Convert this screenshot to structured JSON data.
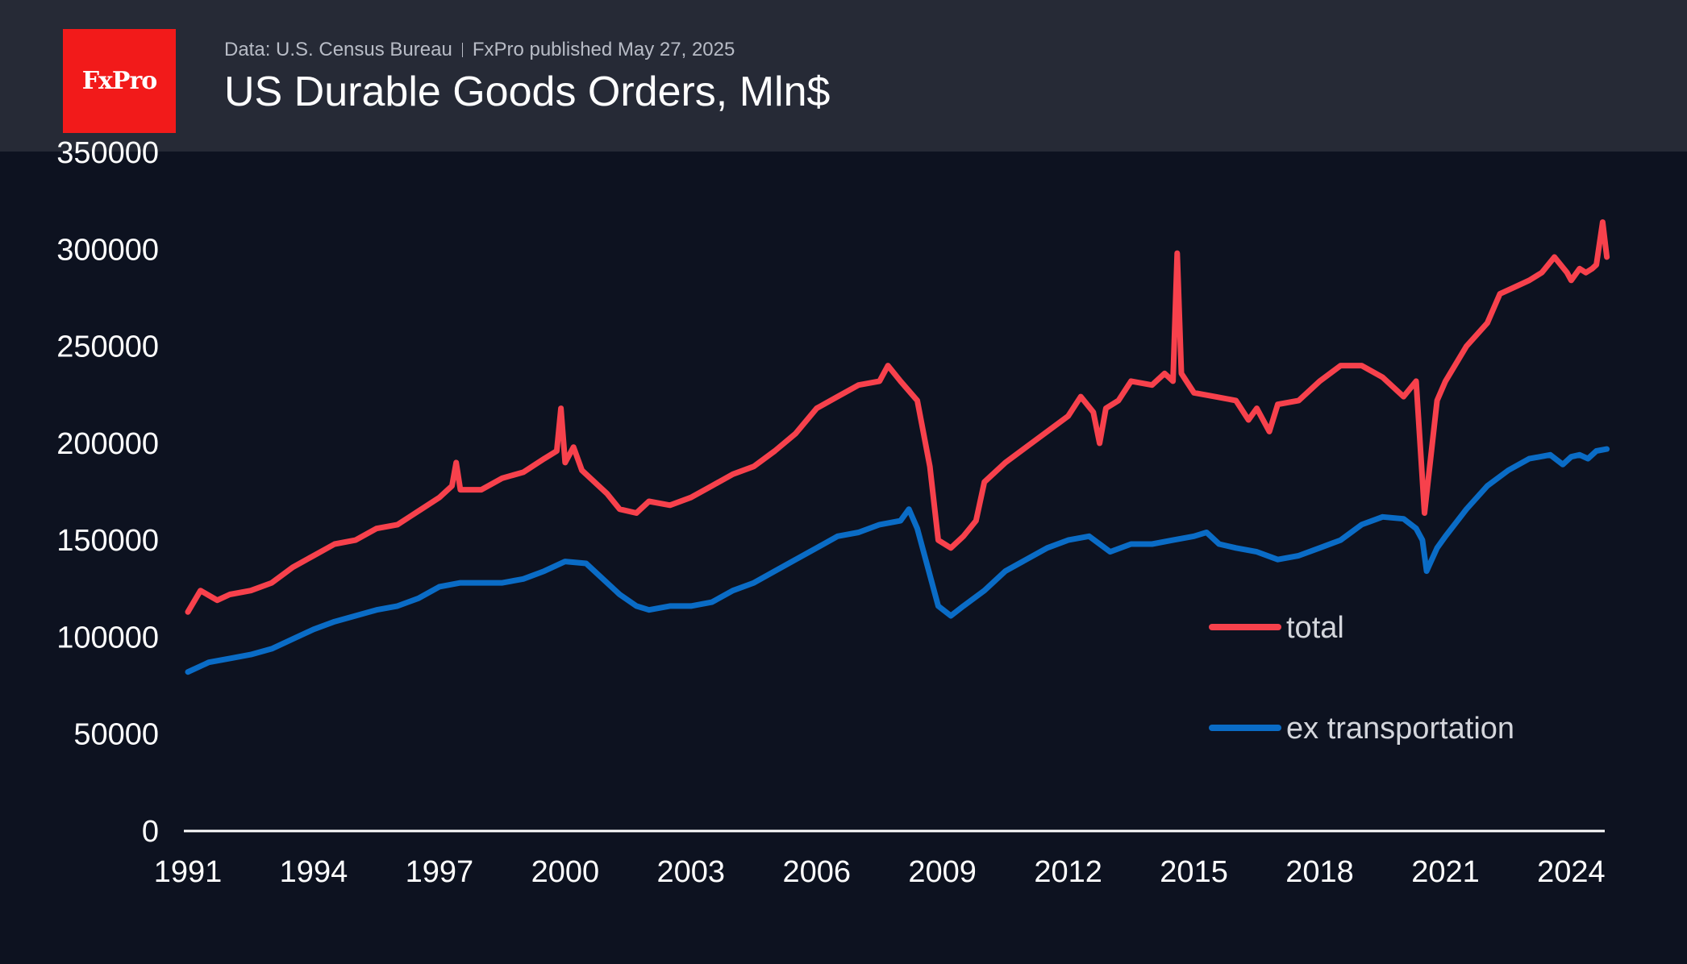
{
  "header": {
    "logo_text": "FxPro",
    "source_text": "Data: U.S. Census Bureau",
    "published_text": "FxPro published May 27, 2025",
    "title": "US Durable Goods Orders, Mln$"
  },
  "colors": {
    "total": "#f7414c",
    "ex_transportation": "#0a6cc6",
    "background": "#0d1220",
    "header": "#262a36",
    "logo": "#f21a1a"
  },
  "chart_data": {
    "type": "line",
    "title": "US Durable Goods Orders, Mln$",
    "xlabel": "",
    "ylabel": "",
    "xlim": [
      1991.0,
      2024.2
    ],
    "ylim": [
      0,
      350000
    ],
    "x_ticks": [
      "1991",
      "1994",
      "1997",
      "2000",
      "2003",
      "2006",
      "2009",
      "2012",
      "2015",
      "2018",
      "2021",
      "2024"
    ],
    "y_ticks": [
      "0",
      "50000",
      "100000",
      "150000",
      "200000",
      "250000",
      "300000",
      "350000"
    ],
    "legend_position": "right",
    "series": [
      {
        "name": "total",
        "points": [
          [
            1991.0,
            113000
          ],
          [
            1991.3,
            124000
          ],
          [
            1991.7,
            119000
          ],
          [
            1992.0,
            122000
          ],
          [
            1992.5,
            124000
          ],
          [
            1993.0,
            128000
          ],
          [
            1993.5,
            136000
          ],
          [
            1994.0,
            142000
          ],
          [
            1994.5,
            148000
          ],
          [
            1995.0,
            150000
          ],
          [
            1995.5,
            156000
          ],
          [
            1996.0,
            158000
          ],
          [
            1996.5,
            165000
          ],
          [
            1997.0,
            172000
          ],
          [
            1997.3,
            178000
          ],
          [
            1997.4,
            190000
          ],
          [
            1997.5,
            176000
          ],
          [
            1998.0,
            176000
          ],
          [
            1998.5,
            182000
          ],
          [
            1999.0,
            185000
          ],
          [
            1999.5,
            192000
          ],
          [
            1999.8,
            196000
          ],
          [
            1999.9,
            218000
          ],
          [
            2000.0,
            190000
          ],
          [
            2000.2,
            198000
          ],
          [
            2000.4,
            186000
          ],
          [
            2000.8,
            178000
          ],
          [
            2001.0,
            174000
          ],
          [
            2001.3,
            166000
          ],
          [
            2001.7,
            164000
          ],
          [
            2002.0,
            170000
          ],
          [
            2002.5,
            168000
          ],
          [
            2003.0,
            172000
          ],
          [
            2003.5,
            178000
          ],
          [
            2004.0,
            184000
          ],
          [
            2004.5,
            188000
          ],
          [
            2005.0,
            196000
          ],
          [
            2005.5,
            205000
          ],
          [
            2006.0,
            218000
          ],
          [
            2006.5,
            224000
          ],
          [
            2007.0,
            230000
          ],
          [
            2007.5,
            232000
          ],
          [
            2007.7,
            240000
          ],
          [
            2008.0,
            232000
          ],
          [
            2008.4,
            222000
          ],
          [
            2008.7,
            188000
          ],
          [
            2008.9,
            150000
          ],
          [
            2009.2,
            146000
          ],
          [
            2009.5,
            152000
          ],
          [
            2009.8,
            160000
          ],
          [
            2010.0,
            180000
          ],
          [
            2010.5,
            190000
          ],
          [
            2011.0,
            198000
          ],
          [
            2011.5,
            206000
          ],
          [
            2012.0,
            214000
          ],
          [
            2012.3,
            224000
          ],
          [
            2012.6,
            216000
          ],
          [
            2012.75,
            200000
          ],
          [
            2012.9,
            218000
          ],
          [
            2013.2,
            222000
          ],
          [
            2013.5,
            232000
          ],
          [
            2014.0,
            230000
          ],
          [
            2014.3,
            236000
          ],
          [
            2014.5,
            232000
          ],
          [
            2014.6,
            298000
          ],
          [
            2014.7,
            236000
          ],
          [
            2015.0,
            226000
          ],
          [
            2015.5,
            224000
          ],
          [
            2016.0,
            222000
          ],
          [
            2016.3,
            212000
          ],
          [
            2016.5,
            218000
          ],
          [
            2016.8,
            206000
          ],
          [
            2017.0,
            220000
          ],
          [
            2017.5,
            222000
          ],
          [
            2018.0,
            232000
          ],
          [
            2018.5,
            240000
          ],
          [
            2019.0,
            240000
          ],
          [
            2019.5,
            234000
          ],
          [
            2020.0,
            224000
          ],
          [
            2020.3,
            232000
          ],
          [
            2020.5,
            164000
          ],
          [
            2020.8,
            222000
          ],
          [
            2021.0,
            232000
          ],
          [
            2021.5,
            250000
          ],
          [
            2022.0,
            262000
          ],
          [
            2022.3,
            277000
          ],
          [
            2022.6,
            280000
          ],
          [
            2023.0,
            284000
          ],
          [
            2023.3,
            288000
          ],
          [
            2023.6,
            296000
          ],
          [
            2023.9,
            288000
          ],
          [
            2024.0,
            284000
          ],
          [
            2024.2,
            290000
          ],
          [
            2024.35,
            288000
          ],
          [
            2024.5,
            290000
          ],
          [
            2024.6,
            292000
          ],
          [
            2024.75,
            314000
          ],
          [
            2024.85,
            296000
          ]
        ]
      },
      {
        "name": "ex transportation",
        "points": [
          [
            1991.0,
            82000
          ],
          [
            1991.5,
            87000
          ],
          [
            1992.0,
            89000
          ],
          [
            1992.5,
            91000
          ],
          [
            1993.0,
            94000
          ],
          [
            1993.5,
            99000
          ],
          [
            1994.0,
            104000
          ],
          [
            1994.5,
            108000
          ],
          [
            1995.0,
            111000
          ],
          [
            1995.5,
            114000
          ],
          [
            1996.0,
            116000
          ],
          [
            1996.5,
            120000
          ],
          [
            1997.0,
            126000
          ],
          [
            1997.5,
            128000
          ],
          [
            1998.0,
            128000
          ],
          [
            1998.5,
            128000
          ],
          [
            1999.0,
            130000
          ],
          [
            1999.5,
            134000
          ],
          [
            2000.0,
            139000
          ],
          [
            2000.5,
            138000
          ],
          [
            2001.0,
            128000
          ],
          [
            2001.3,
            122000
          ],
          [
            2001.7,
            116000
          ],
          [
            2002.0,
            114000
          ],
          [
            2002.5,
            116000
          ],
          [
            2003.0,
            116000
          ],
          [
            2003.5,
            118000
          ],
          [
            2004.0,
            124000
          ],
          [
            2004.5,
            128000
          ],
          [
            2005.0,
            134000
          ],
          [
            2005.5,
            140000
          ],
          [
            2006.0,
            146000
          ],
          [
            2006.5,
            152000
          ],
          [
            2007.0,
            154000
          ],
          [
            2007.5,
            158000
          ],
          [
            2008.0,
            160000
          ],
          [
            2008.2,
            166000
          ],
          [
            2008.4,
            156000
          ],
          [
            2008.6,
            140000
          ],
          [
            2008.9,
            116000
          ],
          [
            2009.2,
            111000
          ],
          [
            2009.5,
            116000
          ],
          [
            2010.0,
            124000
          ],
          [
            2010.5,
            134000
          ],
          [
            2011.0,
            140000
          ],
          [
            2011.5,
            146000
          ],
          [
            2012.0,
            150000
          ],
          [
            2012.5,
            152000
          ],
          [
            2013.0,
            144000
          ],
          [
            2013.5,
            148000
          ],
          [
            2014.0,
            148000
          ],
          [
            2014.5,
            150000
          ],
          [
            2015.0,
            152000
          ],
          [
            2015.3,
            154000
          ],
          [
            2015.6,
            148000
          ],
          [
            2016.0,
            146000
          ],
          [
            2016.5,
            144000
          ],
          [
            2017.0,
            140000
          ],
          [
            2017.5,
            142000
          ],
          [
            2018.0,
            146000
          ],
          [
            2018.5,
            150000
          ],
          [
            2019.0,
            158000
          ],
          [
            2019.5,
            162000
          ],
          [
            2020.0,
            161000
          ],
          [
            2020.3,
            156000
          ],
          [
            2020.45,
            150000
          ],
          [
            2020.55,
            134000
          ],
          [
            2020.8,
            146000
          ],
          [
            2021.0,
            152000
          ],
          [
            2021.5,
            166000
          ],
          [
            2022.0,
            178000
          ],
          [
            2022.5,
            186000
          ],
          [
            2023.0,
            192000
          ],
          [
            2023.5,
            194000
          ],
          [
            2023.8,
            189000
          ],
          [
            2024.0,
            193000
          ],
          [
            2024.2,
            194000
          ],
          [
            2024.4,
            192000
          ],
          [
            2024.6,
            196000
          ],
          [
            2024.85,
            197000
          ]
        ]
      }
    ]
  }
}
